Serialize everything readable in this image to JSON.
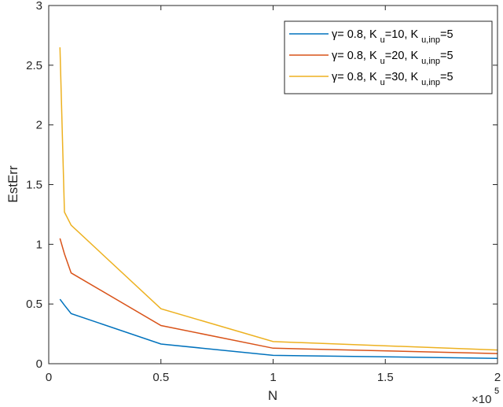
{
  "chart_data": {
    "type": "line",
    "title": "",
    "xlabel": "N",
    "ylabel": "EstErr",
    "x_multiplier_label": "×10",
    "x_multiplier_exponent": "5",
    "xlim": [
      0,
      200000
    ],
    "ylim": [
      0,
      3
    ],
    "x_ticks": [
      0,
      0.5,
      1,
      1.5,
      2
    ],
    "x_tick_labels": [
      "0",
      "0.5",
      "1",
      "1.5",
      "2"
    ],
    "y_ticks": [
      0,
      0.5,
      1,
      1.5,
      2,
      2.5,
      3
    ],
    "y_tick_labels": [
      "0",
      "0.5",
      "1",
      "1.5",
      "2",
      "2.5",
      "3"
    ],
    "grid": false,
    "legend_position": "upper right",
    "x": [
      5000,
      7000,
      10000,
      50000,
      100000,
      200000
    ],
    "series": [
      {
        "name": "γ= 0.8, K_u=10, K_u,inp=5",
        "color": "#0072BD",
        "values": [
          0.54,
          0.49,
          0.42,
          0.165,
          0.07,
          0.045
        ]
      },
      {
        "name": "γ= 0.8, K_u=20, K_u,inp=5",
        "color": "#D95319",
        "values": [
          1.05,
          0.92,
          0.76,
          0.32,
          0.13,
          0.085
        ]
      },
      {
        "name": "γ= 0.8, K_u=30, K_u,inp=5",
        "color": "#EDB120",
        "values": [
          2.65,
          1.27,
          1.16,
          0.46,
          0.185,
          0.115
        ]
      }
    ]
  },
  "legend": {
    "entries": [
      {
        "gamma": "γ",
        "prefix": "= 0.8, K",
        "sub1": "u",
        "mid": "=10, K",
        "sub2": "u,inp",
        "suffix": "=5"
      },
      {
        "gamma": "γ",
        "prefix": "= 0.8, K",
        "sub1": "u",
        "mid": "=20, K",
        "sub2": "u,inp",
        "suffix": "=5"
      },
      {
        "gamma": "γ",
        "prefix": "= 0.8, K",
        "sub1": "u",
        "mid": "=30, K",
        "sub2": "u,inp",
        "suffix": "=5"
      }
    ]
  }
}
